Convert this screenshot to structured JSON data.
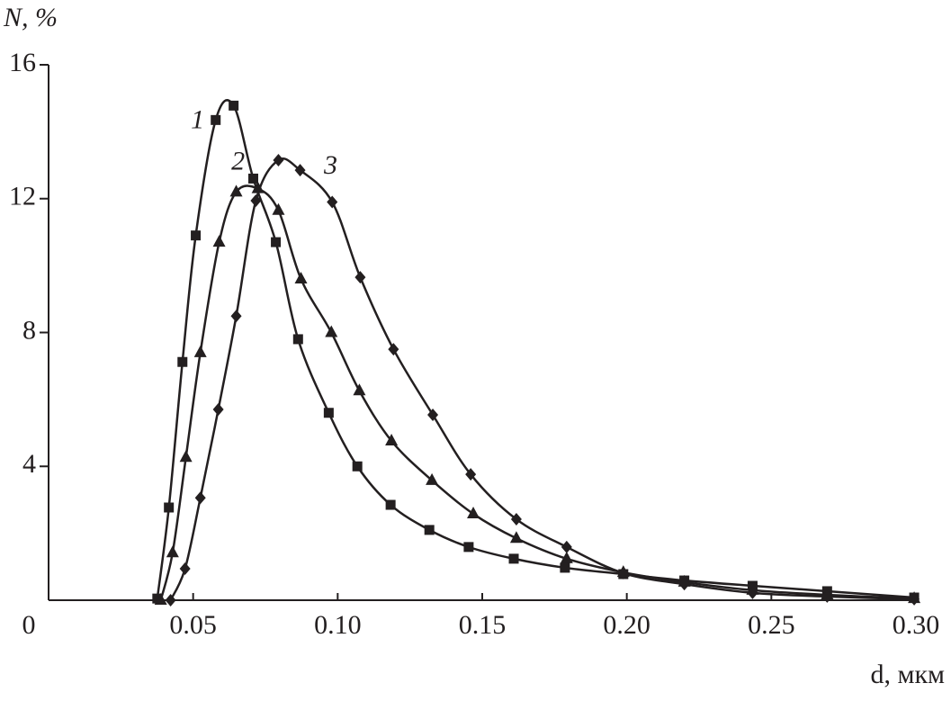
{
  "chart_data": {
    "type": "line",
    "y_label": "N, %",
    "x_label": "d, мкм",
    "xlim": [
      0,
      0.3
    ],
    "ylim": [
      0,
      16
    ],
    "xticks": [
      0,
      0.05,
      {
        "value": 0.1,
        "label": "0.10"
      },
      0.15,
      {
        "value": 0.2,
        "label": "0.20"
      },
      0.25,
      {
        "value": 0.3,
        "label": "0.30"
      }
    ],
    "yticks": [
      4,
      8,
      12,
      16
    ],
    "series": [
      {
        "name": "1",
        "color": "#231f20",
        "marker": "square",
        "x": [
          0.0376,
          0.0416,
          0.0463,
          0.0509,
          0.0578,
          0.064,
          0.0708,
          0.0786,
          0.0863,
          0.0969,
          0.1068,
          0.1183,
          0.1317,
          0.1453,
          0.1609,
          0.1786,
          0.1988,
          0.2199,
          0.2435,
          0.2693,
          0.2994
        ],
        "values": [
          0.05,
          2.77,
          7.12,
          10.9,
          14.35,
          14.78,
          12.6,
          10.7,
          7.8,
          5.6,
          4.0,
          2.85,
          2.1,
          1.59,
          1.24,
          0.97,
          0.78,
          0.59,
          0.43,
          0.27,
          0.08
        ]
      },
      {
        "name": "2",
        "color": "#231f20",
        "marker": "triangle",
        "x": [
          0.0388,
          0.0429,
          0.0475,
          0.0525,
          0.059,
          0.0649,
          0.0724,
          0.0795,
          0.0873,
          0.0978,
          0.1075,
          0.1186,
          0.1326,
          0.1469,
          0.1618,
          0.1792,
          0.1988,
          0.2199,
          0.2435,
          0.2693,
          0.2994
        ],
        "values": [
          0,
          1.42,
          4.27,
          7.4,
          10.7,
          12.2,
          12.3,
          11.65,
          9.6,
          8.0,
          6.26,
          4.76,
          3.58,
          2.58,
          1.85,
          1.24,
          0.83,
          0.54,
          0.3,
          0.16,
          0.05
        ]
      },
      {
        "name": "3",
        "color": "#231f20",
        "marker": "diamond",
        "x": [
          0.0422,
          0.0472,
          0.0525,
          0.0587,
          0.0649,
          0.0717,
          0.0795,
          0.087,
          0.0981,
          0.1078,
          0.1193,
          0.1329,
          0.146,
          0.1618,
          0.1792,
          0.1988,
          0.2199,
          0.2435,
          0.2693,
          0.2994
        ],
        "values": [
          0,
          0.94,
          3.06,
          5.7,
          8.49,
          11.94,
          13.15,
          12.85,
          11.9,
          9.65,
          7.5,
          5.54,
          3.76,
          2.42,
          1.59,
          0.81,
          0.48,
          0.22,
          0.11,
          0.03
        ]
      }
    ]
  }
}
